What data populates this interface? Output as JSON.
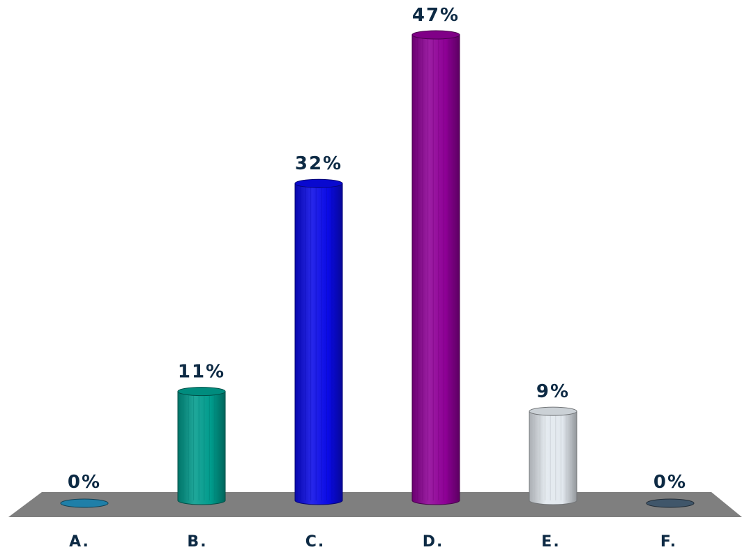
{
  "chart_data": {
    "type": "bar",
    "categories": [
      "A.",
      "B.",
      "C.",
      "D.",
      "E.",
      "F."
    ],
    "values": [
      0,
      11,
      32,
      47,
      9,
      0
    ],
    "value_labels": [
      "0%",
      "11%",
      "32%",
      "47%",
      "9%",
      "0%"
    ],
    "ylim": [
      0,
      47
    ],
    "grid": false,
    "legend": "none",
    "colors": {
      "bars": [
        "#1F7FA8",
        "#009B8C",
        "#0A0AE6",
        "#8E0096",
        "#E2E8EE",
        "#40566A"
      ],
      "floor": "#7F7F7F",
      "label_text": "#0D2A44"
    }
  }
}
